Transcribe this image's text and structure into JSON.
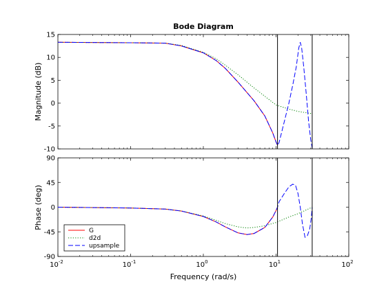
{
  "chart_data": {
    "type": "line",
    "title": "Bode Diagram",
    "xlabel": "Frequency  (rad/s)",
    "xscale": "log",
    "xlim": [
      0.01,
      100
    ],
    "x_ticks": [
      {
        "value": 0.01,
        "base": "10",
        "exp": "-2"
      },
      {
        "value": 0.1,
        "base": "10",
        "exp": "-1"
      },
      {
        "value": 1,
        "base": "10",
        "exp": "0"
      },
      {
        "value": 10,
        "base": "10",
        "exp": "1"
      },
      {
        "value": 100,
        "base": "10",
        "exp": "2"
      }
    ],
    "vlines": [
      10.47,
      31.4
    ],
    "colors": {
      "G": "#ff0000",
      "d2d": "#008000",
      "upsample": "#0000ff"
    },
    "legend": {
      "placement": "lower-left of phase panel",
      "entries": [
        "G",
        "d2d",
        "upsample"
      ]
    },
    "magnitude": {
      "ylabel": "Magnitude (dB)",
      "ylim": [
        -10,
        15
      ],
      "yticks": [
        "-10",
        "-5",
        "0",
        "5",
        "10",
        "15"
      ],
      "series": [
        {
          "name": "G",
          "style": "solid",
          "x": [
            0.01,
            0.1,
            0.3,
            0.5,
            1,
            1.5,
            2,
            3,
            5,
            7,
            9,
            10,
            10.47
          ],
          "y": [
            13.3,
            13.2,
            13.1,
            12.5,
            11.0,
            9.3,
            7.6,
            4.6,
            0.5,
            -2.8,
            -6.5,
            -8.5,
            -9.2
          ]
        },
        {
          "name": "d2d",
          "style": "dotted",
          "x": [
            0.01,
            0.1,
            0.3,
            0.5,
            1,
            1.5,
            2,
            3,
            5,
            7,
            10,
            15,
            20,
            31.4
          ],
          "y": [
            13.3,
            13.2,
            13.1,
            12.6,
            11.1,
            9.7,
            8.3,
            6.2,
            3.3,
            1.5,
            -0.4,
            -1.3,
            -1.8,
            -2.3
          ]
        },
        {
          "name": "upsample",
          "style": "dashed",
          "x": [
            0.01,
            0.1,
            0.3,
            0.5,
            1,
            1.5,
            2,
            3,
            5,
            7,
            9,
            10,
            10.47,
            11,
            13,
            15,
            17,
            19,
            20.5,
            21.5,
            22.5,
            24,
            26,
            28,
            30,
            31.4
          ],
          "y": [
            13.3,
            13.2,
            13.1,
            12.5,
            11.0,
            9.3,
            7.6,
            4.6,
            0.5,
            -2.8,
            -6.5,
            -8.5,
            -9.2,
            -8.6,
            -4.0,
            0.0,
            4.0,
            8.0,
            12.0,
            13.3,
            12.0,
            8.0,
            2.0,
            -4.0,
            -8.0,
            -9.8
          ]
        }
      ]
    },
    "phase": {
      "ylabel": "Phase (deg)",
      "ylim": [
        -90,
        90
      ],
      "yticks": [
        "-90",
        "-45",
        "0",
        "45",
        "90"
      ],
      "series": [
        {
          "name": "G",
          "style": "solid",
          "x": [
            0.01,
            0.1,
            0.3,
            0.5,
            1,
            1.5,
            2,
            3,
            4,
            5,
            7,
            9,
            10,
            10.47
          ],
          "y": [
            0,
            -1.5,
            -3.5,
            -7,
            -17,
            -27,
            -36,
            -47,
            -50,
            -48,
            -37,
            -18,
            -6,
            0
          ]
        },
        {
          "name": "d2d",
          "style": "dotted",
          "x": [
            0.01,
            0.1,
            0.3,
            0.5,
            1,
            1.5,
            2,
            3,
            4,
            5,
            7,
            10,
            15,
            20,
            31.4
          ],
          "y": [
            0,
            -1.5,
            -3.5,
            -7,
            -16,
            -24,
            -30,
            -36,
            -38,
            -37,
            -34,
            -28,
            -18,
            -12,
            0
          ]
        },
        {
          "name": "upsample",
          "style": "dashed",
          "x": [
            0.01,
            0.1,
            0.3,
            0.5,
            1,
            1.5,
            2,
            3,
            4,
            5,
            7,
            9,
            10,
            10.47,
            11,
            13,
            15,
            17,
            18.5,
            20,
            21.5,
            23,
            25,
            27,
            29,
            30.5,
            31.4
          ],
          "y": [
            0,
            -1.5,
            -3.5,
            -7,
            -17,
            -27,
            -36,
            -47,
            -50,
            -48,
            -37,
            -18,
            -6,
            0,
            10,
            25,
            37,
            42,
            40,
            25,
            0,
            -30,
            -55,
            -52,
            -40,
            -20,
            0
          ]
        }
      ]
    }
  }
}
